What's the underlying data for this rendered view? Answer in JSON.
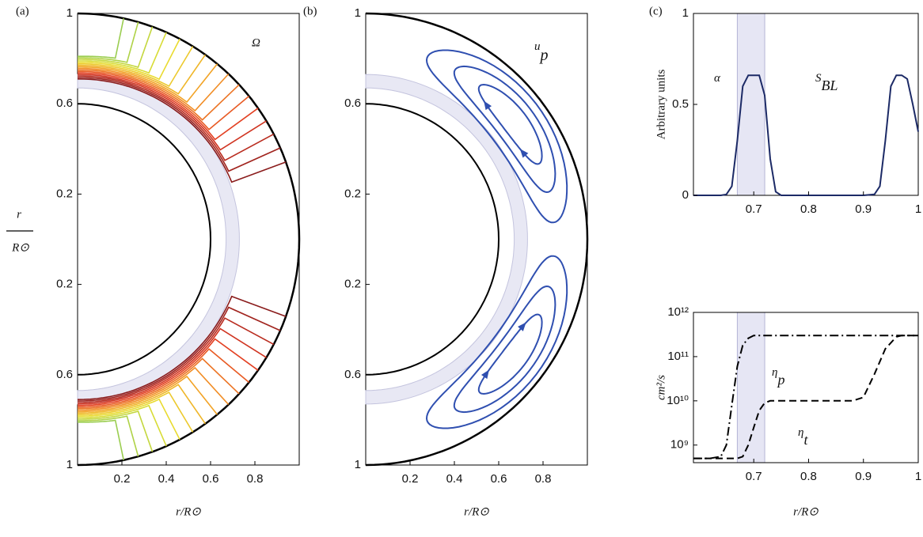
{
  "chart_data": [
    {
      "type": "meridional",
      "field": "rotation",
      "label": "(a)",
      "annotation": "Ω",
      "xlabel": "r/R⊙",
      "ylabel": {
        "top": "r",
        "bottom": "R⊙"
      },
      "xlim": [
        0,
        1
      ],
      "xticks": [
        0.2,
        0.4,
        0.6,
        0.8
      ],
      "ylim": [
        -1,
        1
      ],
      "yticks": [
        {
          "value": -1,
          "label": "1"
        },
        {
          "value": -0.6,
          "label": "0.6"
        },
        {
          "value": -0.2,
          "label": "0.2"
        },
        0.2,
        0.6,
        1
      ],
      "inner_radius": 0.6,
      "shell": [
        0.67,
        0.73
      ]
    },
    {
      "type": "meridional",
      "field": "flow",
      "label": "(b)",
      "annotation": {
        "text": "u",
        "sub": "p"
      },
      "xlabel": "r/R⊙",
      "color": "#2f4fb0",
      "xlim": [
        0,
        1
      ],
      "xticks": [
        0.2,
        0.4,
        0.6,
        0.8
      ],
      "ylim": [
        -1,
        1
      ],
      "yticks": [
        {
          "value": -1,
          "label": "1"
        },
        {
          "value": -0.6,
          "label": "0.6"
        },
        {
          "value": -0.2,
          "label": "0.2"
        },
        0.2,
        0.6,
        1
      ],
      "inner_radius": 0.6,
      "shell": [
        0.67,
        0.73
      ]
    },
    {
      "type": "line",
      "label": "(c)",
      "ylabel": "Arbitrary units",
      "xlim": [
        0.59,
        1
      ],
      "xticks": [
        0.7,
        0.8,
        0.9,
        1
      ],
      "ylim": [
        0,
        1
      ],
      "yticks": [
        0,
        0.5,
        1
      ],
      "shade": [
        0.67,
        0.72
      ],
      "x": [
        0.59,
        0.64,
        0.65,
        0.66,
        0.67,
        0.68,
        0.69,
        0.7,
        0.71,
        0.72,
        0.73,
        0.74,
        0.75,
        0.8,
        0.9,
        0.92,
        0.93,
        0.94,
        0.95,
        0.96,
        0.97,
        0.98,
        0.99,
        1.0
      ],
      "series": [
        {
          "name": "α",
          "color": "#1c2a66",
          "values": [
            0,
            0,
            0.005,
            0.05,
            0.3,
            0.6,
            0.66,
            0.66,
            0.66,
            0.55,
            0.2,
            0.02,
            0,
            0,
            0,
            null,
            null,
            null,
            null,
            null,
            null,
            null,
            null,
            null
          ]
        },
        {
          "name": "S",
          "sub": "BL",
          "color": "#1c2a66",
          "values": [
            null,
            null,
            null,
            null,
            null,
            null,
            null,
            null,
            null,
            null,
            null,
            null,
            null,
            null,
            0,
            0.005,
            0.05,
            0.3,
            0.6,
            0.66,
            0.66,
            0.64,
            0.5,
            0.35
          ]
        }
      ]
    },
    {
      "type": "line",
      "log_y": true,
      "ylabel": "cm²/s",
      "xlabel": "r/R⊙",
      "xlim": [
        0.59,
        1
      ],
      "xticks": [
        0.7,
        0.8,
        0.9,
        1
      ],
      "ylim": [
        400000000,
        1000000000000
      ],
      "yticks": [
        {
          "value": 1000000000,
          "label": "10⁹"
        },
        {
          "value": 10000000000,
          "label": "10¹⁰"
        },
        {
          "value": 100000000000,
          "label": "10¹¹"
        },
        {
          "value": 1000000000000,
          "label": "10¹²"
        }
      ],
      "shade": [
        0.67,
        0.72
      ],
      "x": [
        0.59,
        0.62,
        0.64,
        0.65,
        0.66,
        0.67,
        0.68,
        0.69,
        0.7,
        0.71,
        0.72,
        0.73,
        0.75,
        0.8,
        0.85,
        0.88,
        0.9,
        0.92,
        0.94,
        0.96,
        0.97,
        0.98,
        1.0
      ],
      "series": [
        {
          "name": "η",
          "sub": "p",
          "color": "#000000",
          "dash": "dashdot",
          "values": [
            500000000.0,
            500000000.0,
            550000000.0,
            1000000000.0,
            8000000000.0,
            60000000000.0,
            180000000000.0,
            260000000000.0,
            300000000000.0,
            300000000000.0,
            300000000000.0,
            300000000000.0,
            300000000000.0,
            300000000000.0,
            300000000000.0,
            300000000000.0,
            300000000000.0,
            300000000000.0,
            300000000000.0,
            300000000000.0,
            300000000000.0,
            300000000000.0,
            300000000000.0
          ]
        },
        {
          "name": "η",
          "sub": "t",
          "color": "#000000",
          "dash": "dashed",
          "values": [
            500000000.0,
            500000000.0,
            500000000.0,
            500000000.0,
            500000000.0,
            500000000.0,
            550000000.0,
            1000000000.0,
            2500000000.0,
            6000000000.0,
            9000000000.0,
            10000000000.0,
            10000000000.0,
            10000000000.0,
            10000000000.0,
            10000000000.0,
            12000000000.0,
            40000000000.0,
            150000000000.0,
            280000000000.0,
            300000000000.0,
            300000000000.0,
            300000000000.0
          ]
        }
      ]
    }
  ]
}
